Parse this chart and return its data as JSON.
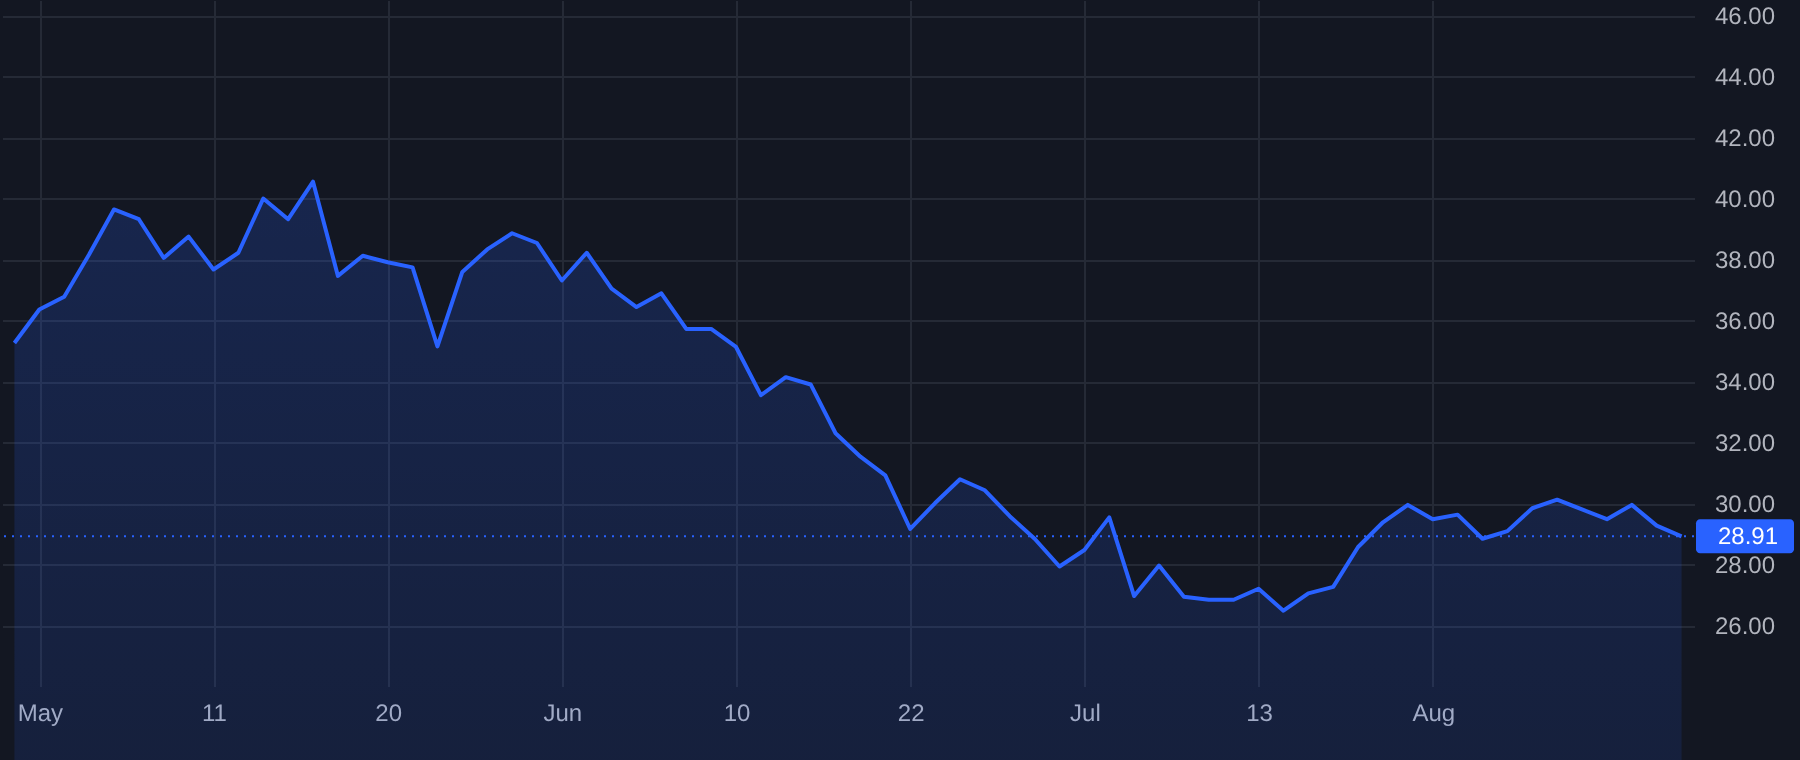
{
  "chart_data": {
    "type": "area",
    "categories": [
      null,
      "May",
      null,
      null,
      null,
      null,
      null,
      null,
      "11",
      null,
      null,
      null,
      null,
      null,
      null,
      "20",
      null,
      null,
      null,
      null,
      null,
      null,
      "Jun",
      null,
      null,
      null,
      null,
      null,
      null,
      "10",
      null,
      null,
      null,
      null,
      null,
      null,
      "22",
      null,
      null,
      null,
      null,
      null,
      null,
      "Jul",
      null,
      null,
      null,
      null,
      null,
      null,
      "13",
      null,
      null,
      null,
      null,
      null,
      null,
      "Aug",
      null,
      null,
      null,
      null,
      null,
      null,
      null,
      null,
      null,
      null
    ],
    "values": [
      35.25,
      36.35,
      36.77,
      38.15,
      39.63,
      39.31,
      38.04,
      38.74,
      37.66,
      38.21,
      39.99,
      39.31,
      40.54,
      37.45,
      38.11,
      37.9,
      37.73,
      35.14,
      37.58,
      38.32,
      38.85,
      38.53,
      37.3,
      38.21,
      37.03,
      36.43,
      36.88,
      35.71,
      35.71,
      35.12,
      33.54,
      34.13,
      33.89,
      32.29,
      31.52,
      30.91,
      29.15,
      30.0,
      30.78,
      30.42,
      29.57,
      28.83,
      27.92,
      28.46,
      29.53,
      26.95,
      27.95,
      26.93,
      26.83,
      26.83,
      27.19,
      26.47,
      27.04,
      27.25,
      28.56,
      29.37,
      29.94,
      29.47,
      29.62,
      28.83,
      29.08,
      29.83,
      30.11,
      29.79,
      29.47,
      29.94,
      29.26,
      28.91
    ],
    "color": "#2962ff",
    "ylim": [
      24,
      46.5
    ],
    "yticks": [
      {
        "value": 26,
        "label": "26.00"
      },
      {
        "value": 28,
        "label": "28.00"
      },
      {
        "value": 30,
        "label": "30.00"
      },
      {
        "value": 32,
        "label": "32.00"
      },
      {
        "value": 34,
        "label": "34.00"
      },
      {
        "value": 36,
        "label": "36.00"
      },
      {
        "value": 38,
        "label": "38.00"
      },
      {
        "value": 40,
        "label": "40.00"
      },
      {
        "value": 42,
        "label": "42.00"
      },
      {
        "value": 44,
        "label": "44.00"
      },
      {
        "value": 46,
        "label": "46.00"
      }
    ],
    "grid": true,
    "ref_lines": [
      {
        "axis": "y",
        "value": 28.91,
        "label": "28.91",
        "color": "#2962ff",
        "line_style": "dotted"
      }
    ]
  }
}
